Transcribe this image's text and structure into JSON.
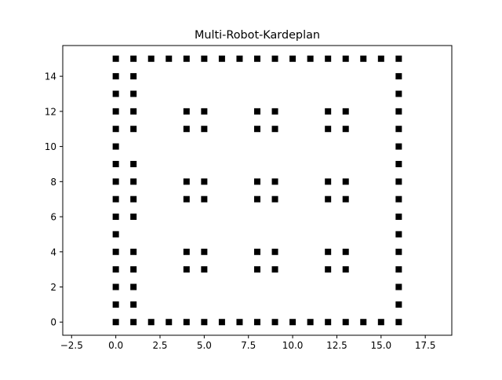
{
  "chart_data": {
    "type": "scatter",
    "title": "Multi-Robot-Kardeplan",
    "xlabel": "",
    "ylabel": "",
    "xlim": [
      -3.0,
      19.0
    ],
    "ylim": [
      -0.75,
      15.75
    ],
    "x_ticks": [
      -2.5,
      0.0,
      2.5,
      5.0,
      7.5,
      10.0,
      12.5,
      15.0,
      17.5
    ],
    "x_tick_labels": [
      "−2.5",
      "0.0",
      "2.5",
      "5.0",
      "7.5",
      "10.0",
      "12.5",
      "15.0",
      "17.5"
    ],
    "y_ticks": [
      0,
      2,
      4,
      6,
      8,
      10,
      12,
      14
    ],
    "y_tick_labels": [
      "0",
      "2",
      "4",
      "6",
      "8",
      "10",
      "12",
      "14"
    ],
    "grid": false,
    "marker": "square",
    "marker_color": "#000000",
    "points": [
      [
        0,
        0
      ],
      [
        1,
        0
      ],
      [
        2,
        0
      ],
      [
        3,
        0
      ],
      [
        4,
        0
      ],
      [
        5,
        0
      ],
      [
        6,
        0
      ],
      [
        7,
        0
      ],
      [
        8,
        0
      ],
      [
        9,
        0
      ],
      [
        10,
        0
      ],
      [
        11,
        0
      ],
      [
        12,
        0
      ],
      [
        13,
        0
      ],
      [
        14,
        0
      ],
      [
        15,
        0
      ],
      [
        16,
        0
      ],
      [
        0,
        15
      ],
      [
        1,
        15
      ],
      [
        2,
        15
      ],
      [
        3,
        15
      ],
      [
        4,
        15
      ],
      [
        5,
        15
      ],
      [
        6,
        15
      ],
      [
        7,
        15
      ],
      [
        8,
        15
      ],
      [
        9,
        15
      ],
      [
        10,
        15
      ],
      [
        11,
        15
      ],
      [
        12,
        15
      ],
      [
        13,
        15
      ],
      [
        14,
        15
      ],
      [
        15,
        15
      ],
      [
        16,
        15
      ],
      [
        0,
        1
      ],
      [
        0,
        2
      ],
      [
        0,
        3
      ],
      [
        0,
        4
      ],
      [
        0,
        5
      ],
      [
        0,
        6
      ],
      [
        0,
        7
      ],
      [
        0,
        8
      ],
      [
        0,
        9
      ],
      [
        0,
        10
      ],
      [
        0,
        11
      ],
      [
        0,
        12
      ],
      [
        0,
        13
      ],
      [
        0,
        14
      ],
      [
        1,
        1
      ],
      [
        1,
        2
      ],
      [
        1,
        3
      ],
      [
        1,
        4
      ],
      [
        1,
        6
      ],
      [
        1,
        7
      ],
      [
        1,
        8
      ],
      [
        1,
        9
      ],
      [
        1,
        11
      ],
      [
        1,
        12
      ],
      [
        1,
        13
      ],
      [
        1,
        14
      ],
      [
        16,
        1
      ],
      [
        16,
        2
      ],
      [
        16,
        3
      ],
      [
        16,
        4
      ],
      [
        16,
        5
      ],
      [
        16,
        6
      ],
      [
        16,
        7
      ],
      [
        16,
        8
      ],
      [
        16,
        9
      ],
      [
        16,
        10
      ],
      [
        16,
        11
      ],
      [
        16,
        12
      ],
      [
        16,
        13
      ],
      [
        16,
        14
      ],
      [
        4,
        3
      ],
      [
        5,
        3
      ],
      [
        4,
        4
      ],
      [
        5,
        4
      ],
      [
        8,
        3
      ],
      [
        9,
        3
      ],
      [
        8,
        4
      ],
      [
        9,
        4
      ],
      [
        12,
        3
      ],
      [
        13,
        3
      ],
      [
        12,
        4
      ],
      [
        13,
        4
      ],
      [
        4,
        7
      ],
      [
        5,
        7
      ],
      [
        4,
        8
      ],
      [
        5,
        8
      ],
      [
        8,
        7
      ],
      [
        9,
        7
      ],
      [
        8,
        8
      ],
      [
        9,
        8
      ],
      [
        12,
        7
      ],
      [
        13,
        7
      ],
      [
        12,
        8
      ],
      [
        13,
        8
      ],
      [
        4,
        11
      ],
      [
        5,
        11
      ],
      [
        4,
        12
      ],
      [
        5,
        12
      ],
      [
        8,
        11
      ],
      [
        9,
        11
      ],
      [
        8,
        12
      ],
      [
        9,
        12
      ],
      [
        12,
        11
      ],
      [
        13,
        11
      ],
      [
        12,
        12
      ],
      [
        13,
        12
      ]
    ]
  }
}
